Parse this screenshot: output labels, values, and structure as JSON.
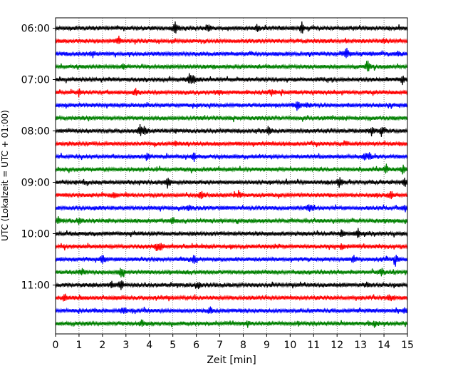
{
  "chart_data": {
    "type": "line",
    "title": "",
    "xlabel": "Zeit  [min]",
    "ylabel": "UTC (Lokalzeit = UTC + 01:00)",
    "xlim": [
      0,
      15
    ],
    "x_ticks": [
      "0",
      "1",
      "2",
      "3",
      "4",
      "5",
      "6",
      "7",
      "8",
      "9",
      "10",
      "11",
      "12",
      "13",
      "14",
      "15"
    ],
    "y_tick_labels": [
      {
        "label": "06:00",
        "trace_index": 0
      },
      {
        "label": "07:00",
        "trace_index": 4
      },
      {
        "label": "08:00",
        "trace_index": 8
      },
      {
        "label": "09:00",
        "trace_index": 12
      },
      {
        "label": "10:00",
        "trace_index": 16
      },
      {
        "label": "11:00",
        "trace_index": 20
      }
    ],
    "trace_interval_min": 15,
    "start_time": "06:00",
    "color_cycle": [
      "#000000",
      "#ff0000",
      "#0000ff",
      "#008000"
    ],
    "traces": [
      {
        "start": "06:00",
        "color": "#000000",
        "events": [
          [
            5.1,
            1.0
          ],
          [
            6.5,
            0.4
          ],
          [
            8.6,
            0.5
          ],
          [
            10.5,
            0.8
          ]
        ]
      },
      {
        "start": "06:15",
        "color": "#ff0000",
        "events": [
          [
            2.7,
            0.6
          ],
          [
            14.0,
            0.3
          ]
        ]
      },
      {
        "start": "06:30",
        "color": "#0000ff",
        "events": [
          [
            1.6,
            0.5
          ],
          [
            12.4,
            0.8
          ],
          [
            14.6,
            0.4
          ]
        ]
      },
      {
        "start": "06:45",
        "color": "#008000",
        "events": [
          [
            2.9,
            0.3
          ],
          [
            13.3,
            1.0
          ]
        ]
      },
      {
        "start": "07:00",
        "color": "#000000",
        "events": [
          [
            5.7,
            0.8
          ],
          [
            5.9,
            0.9
          ],
          [
            14.8,
            0.7
          ]
        ]
      },
      {
        "start": "07:15",
        "color": "#ff0000",
        "events": [
          [
            1.0,
            0.5
          ],
          [
            3.4,
            0.5
          ],
          [
            7.0,
            0.4
          ],
          [
            9.2,
            0.5
          ]
        ]
      },
      {
        "start": "07:30",
        "color": "#0000ff",
        "events": [
          [
            10.3,
            0.9
          ],
          [
            10.7,
            0.4
          ]
        ]
      },
      {
        "start": "07:45",
        "color": "#008000",
        "events": []
      },
      {
        "start": "08:00",
        "color": "#000000",
        "events": [
          [
            3.6,
            0.8
          ],
          [
            3.8,
            0.7
          ],
          [
            9.1,
            0.8
          ],
          [
            13.5,
            0.8
          ],
          [
            13.9,
            0.7
          ]
        ]
      },
      {
        "start": "08:15",
        "color": "#ff0000",
        "events": [
          [
            5.1,
            0.3
          ],
          [
            12.4,
            0.3
          ]
        ]
      },
      {
        "start": "08:30",
        "color": "#0000ff",
        "events": [
          [
            3.9,
            0.5
          ],
          [
            5.9,
            0.7
          ],
          [
            13.2,
            0.6
          ],
          [
            13.4,
            0.5
          ]
        ]
      },
      {
        "start": "08:45",
        "color": "#008000",
        "events": [
          [
            14.1,
            0.6
          ],
          [
            14.8,
            0.6
          ]
        ]
      },
      {
        "start": "09:00",
        "color": "#000000",
        "events": [
          [
            4.8,
            0.7
          ],
          [
            12.1,
            0.7
          ],
          [
            14.9,
            0.8
          ]
        ]
      },
      {
        "start": "09:15",
        "color": "#ff0000",
        "events": [
          [
            2.5,
            0.4
          ],
          [
            6.2,
            0.6
          ],
          [
            7.8,
            0.5
          ],
          [
            14.3,
            0.6
          ]
        ]
      },
      {
        "start": "09:30",
        "color": "#0000ff",
        "events": [
          [
            5.7,
            0.4
          ],
          [
            10.8,
            0.5
          ],
          [
            11.0,
            0.4
          ],
          [
            14.9,
            0.5
          ]
        ]
      },
      {
        "start": "09:45",
        "color": "#008000",
        "events": [
          [
            0.1,
            0.6
          ],
          [
            1.0,
            0.5
          ],
          [
            5.0,
            0.6
          ]
        ]
      },
      {
        "start": "10:00",
        "color": "#000000",
        "events": [
          [
            12.2,
            0.7
          ],
          [
            12.9,
            0.6
          ]
        ]
      },
      {
        "start": "10:15",
        "color": "#ff0000",
        "events": [
          [
            4.3,
            0.6
          ],
          [
            4.5,
            0.5
          ],
          [
            12.2,
            0.4
          ]
        ]
      },
      {
        "start": "10:30",
        "color": "#0000ff",
        "events": [
          [
            2.0,
            0.7
          ],
          [
            5.9,
            0.7
          ],
          [
            12.7,
            0.6
          ],
          [
            14.5,
            0.6
          ]
        ]
      },
      {
        "start": "10:45",
        "color": "#008000",
        "events": [
          [
            1.1,
            0.5
          ],
          [
            2.8,
            0.8
          ],
          [
            13.9,
            0.5
          ]
        ]
      },
      {
        "start": "11:00",
        "color": "#000000",
        "events": [
          [
            2.4,
            0.4
          ],
          [
            2.8,
            0.7
          ],
          [
            6.1,
            0.5
          ],
          [
            13.3,
            0.4
          ]
        ]
      },
      {
        "start": "11:15",
        "color": "#ff0000",
        "events": [
          [
            0.4,
            0.6
          ],
          [
            14.2,
            0.4
          ]
        ]
      },
      {
        "start": "11:30",
        "color": "#0000ff",
        "events": [
          [
            2.9,
            0.6
          ],
          [
            6.6,
            0.6
          ],
          [
            14.9,
            0.4
          ]
        ]
      },
      {
        "start": "11:45",
        "color": "#008000",
        "events": [
          [
            3.7,
            0.5
          ],
          [
            8.2,
            0.4
          ],
          [
            13.6,
            0.4
          ]
        ]
      }
    ]
  }
}
